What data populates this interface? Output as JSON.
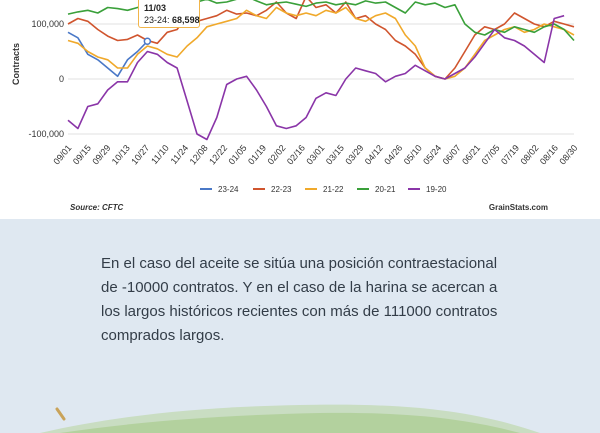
{
  "chart_data": {
    "type": "line",
    "ylabel": "Contracts",
    "xlabel": "",
    "ylim": [
      -100000,
      100000
    ],
    "yticks": [
      -100000,
      0,
      100000
    ],
    "ytick_labels": [
      "-100,000",
      "0",
      "100,000"
    ],
    "x_tick_labels": [
      "09/01",
      "09/15",
      "09/29",
      "10/13",
      "10/27",
      "11/10",
      "11/24",
      "12/08",
      "12/22",
      "01/05",
      "01/19",
      "02/02",
      "02/16",
      "03/01",
      "03/15",
      "03/29",
      "04/12",
      "04/26",
      "05/10",
      "05/24",
      "06/07",
      "06/21",
      "07/05",
      "07/19",
      "08/02",
      "08/16",
      "08/30"
    ],
    "grid": true,
    "legend_placement": "bottom",
    "series": [
      {
        "name": "23-24",
        "color": "#4a78c7",
        "values": [
          85000,
          75000,
          45000,
          35000,
          20000,
          5000,
          35000,
          50000,
          68598
        ]
      },
      {
        "name": "22-23",
        "color": "#d0552e",
        "values": [
          100000,
          110000,
          105000,
          90000,
          78000,
          70000,
          72000,
          80000,
          70000,
          65000,
          85000,
          90000,
          115000,
          105000,
          110000,
          115000,
          125000,
          118000,
          120000,
          115000,
          125000,
          140000,
          120000,
          110000,
          150000,
          130000,
          135000,
          120000,
          140000,
          110000,
          115000,
          100000,
          90000,
          70000,
          60000,
          45000,
          20000,
          5000,
          0,
          20000,
          50000,
          80000,
          95000,
          90000,
          100000,
          120000,
          110000,
          100000,
          95000,
          105000,
          100000,
          95000
        ]
      },
      {
        "name": "21-22",
        "color": "#f0a92b",
        "values": [
          70000,
          65000,
          50000,
          40000,
          35000,
          20000,
          20000,
          45000,
          60000,
          55000,
          45000,
          40000,
          60000,
          75000,
          95000,
          100000,
          105000,
          110000,
          125000,
          115000,
          110000,
          130000,
          120000,
          115000,
          120000,
          115000,
          125000,
          120000,
          130000,
          110000,
          105000,
          115000,
          120000,
          110000,
          80000,
          60000,
          20000,
          5000,
          0,
          5000,
          20000,
          45000,
          70000,
          80000,
          90000,
          95000,
          85000,
          90000,
          100000,
          95000,
          90000,
          80000
        ]
      },
      {
        "name": "20-21",
        "color": "#3aa03a",
        "values": [
          118000,
          122000,
          125000,
          120000,
          130000,
          128000,
          125000,
          130000,
          135000,
          140000,
          138000,
          130000,
          135000,
          140000,
          145000,
          138000,
          140000,
          145000,
          150000,
          142000,
          135000,
          138000,
          140000,
          136000,
          132000,
          138000,
          140000,
          135000,
          138000,
          135000,
          142000,
          138000,
          140000,
          130000,
          120000,
          140000,
          135000,
          138000,
          130000,
          135000,
          100000,
          85000,
          80000,
          90000,
          85000,
          95000,
          90000,
          85000,
          95000,
          100000,
          90000,
          70000
        ]
      },
      {
        "name": "19-20",
        "color": "#8a35a8",
        "values": [
          -75000,
          -90000,
          -50000,
          -45000,
          -20000,
          -5000,
          -5000,
          30000,
          50000,
          45000,
          30000,
          20000,
          -40000,
          -100000,
          -110000,
          -70000,
          -10000,
          0,
          5000,
          -20000,
          -50000,
          -85000,
          -90000,
          -85000,
          -70000,
          -35000,
          -25000,
          -30000,
          0,
          20000,
          15000,
          10000,
          -5000,
          5000,
          10000,
          25000,
          15000,
          5000,
          0,
          10000,
          20000,
          40000,
          65000,
          90000,
          75000,
          70000,
          60000,
          45000,
          30000,
          110000,
          115000
        ]
      }
    ],
    "tooltip": {
      "date": "11/03",
      "series": "23-24",
      "value_label": "68,598"
    },
    "source_label": "Source: CFTC",
    "brand_label": "GrainStats.com"
  },
  "article": {
    "paragraph": "En el caso del aceite se sitúa una posición contraestacional de -10000 contratos. Y en el caso de la harina se acercan a los largos históricos recientes con más de 111000 contratos comprados largos."
  }
}
